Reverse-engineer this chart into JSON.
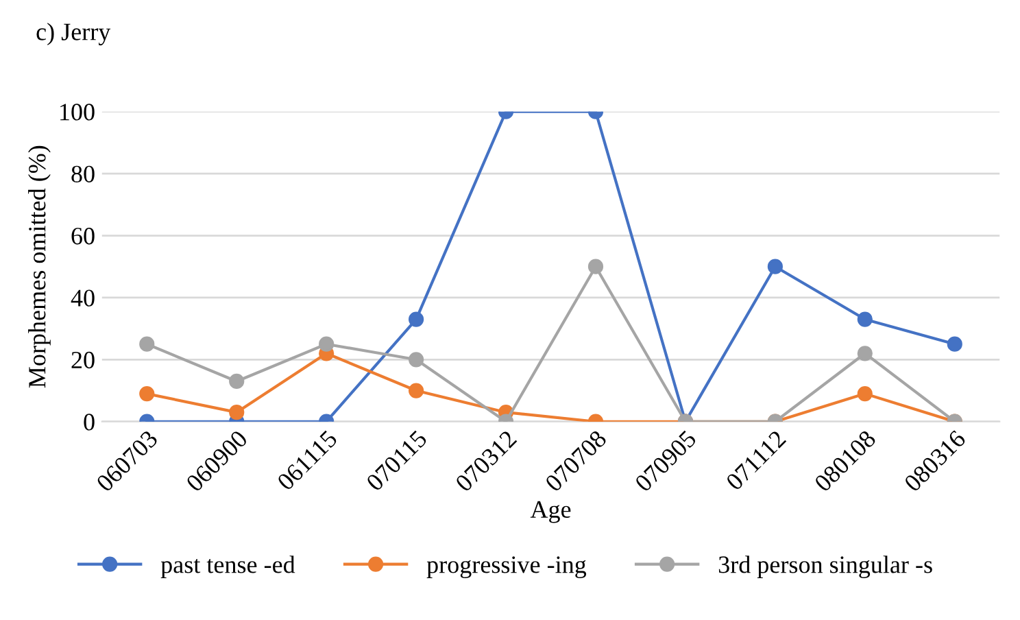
{
  "chart_data": {
    "type": "line",
    "title": "c) Jerry",
    "xlabel": "Age",
    "ylabel": "Morphemes omitted (%)",
    "categories": [
      "060703",
      "060900",
      "061115",
      "070115",
      "070312",
      "070708",
      "070905",
      "071112",
      "080108",
      "080316"
    ],
    "series": [
      {
        "name": "past tense -ed",
        "color": "#4472c4",
        "values": [
          0,
          0,
          0,
          33,
          100,
          100,
          0,
          50,
          33,
          25
        ]
      },
      {
        "name": "progressive -ing",
        "color": "#ed7d31",
        "values": [
          9,
          3,
          22,
          10,
          3,
          0,
          0,
          0,
          9,
          0
        ]
      },
      {
        "name": "3rd person singular -s",
        "color": "#a5a5a5",
        "values": [
          25,
          13,
          25,
          20,
          0,
          50,
          0,
          0,
          22,
          0
        ]
      }
    ],
    "ylim": [
      0,
      100
    ],
    "yticks": [
      0,
      20,
      40,
      60,
      80,
      100
    ],
    "grid": "y",
    "legend": "bottom",
    "marker": "circle",
    "line_style": "solid"
  }
}
